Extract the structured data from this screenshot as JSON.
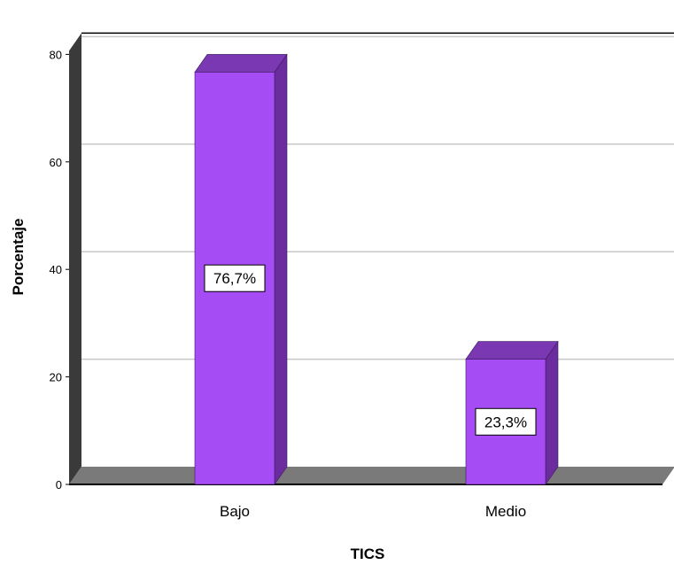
{
  "chart_data": {
    "type": "bar",
    "categories": [
      "Bajo",
      "Medio"
    ],
    "values": [
      76.7,
      23.3
    ],
    "data_labels": [
      "76,7%",
      "23,3%"
    ],
    "xlabel": "TICS",
    "ylabel": "Porcentaje",
    "ylim": [
      0,
      80
    ],
    "yticks": [
      "0",
      "20",
      "40",
      "60",
      "80"
    ],
    "grid": true,
    "three_d": true,
    "colors": {
      "bar_front": "#a64cf4",
      "bar_side": "#6b2d9e",
      "bar_top": "#7a38b3",
      "floor": "#7a7a7a",
      "wall": "#3a3a3a",
      "grid": "#c8c8c8"
    }
  }
}
